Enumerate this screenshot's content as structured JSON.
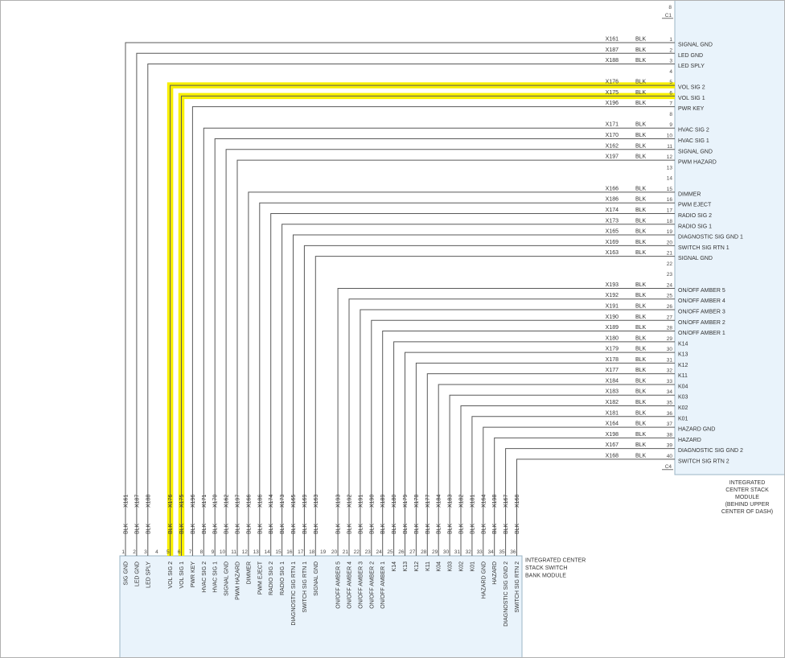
{
  "connectors": {
    "top_pin_ref": "8",
    "top": "C1",
    "bottom": "C4"
  },
  "right_module": {
    "title_lines": [
      "INTEGRATED",
      "CENTER STACK",
      "MODULE",
      "(BEHIND UPPER",
      "CENTER OF DASH)"
    ],
    "pins": [
      {
        "num": 1,
        "label": "SIGNAL GND"
      },
      {
        "num": 2,
        "label": "LED GND"
      },
      {
        "num": 3,
        "label": "LED SPLY"
      },
      {
        "num": 4,
        "label": ""
      },
      {
        "num": 5,
        "label": "VOL SIG 2"
      },
      {
        "num": 6,
        "label": "VOL SIG 1"
      },
      {
        "num": 7,
        "label": "PWR KEY"
      },
      {
        "num": 8,
        "label": ""
      },
      {
        "num": 9,
        "label": "HVAC SIG 2"
      },
      {
        "num": 10,
        "label": "HVAC SIG 1"
      },
      {
        "num": 11,
        "label": "SIGNAL GND"
      },
      {
        "num": 12,
        "label": "PWM HAZARD"
      },
      {
        "num": 13,
        "label": ""
      },
      {
        "num": 14,
        "label": ""
      },
      {
        "num": 15,
        "label": "DIMMER"
      },
      {
        "num": 16,
        "label": "PWM EJECT"
      },
      {
        "num": 17,
        "label": "RADIO SIG 2"
      },
      {
        "num": 18,
        "label": "RADIO SIG 1"
      },
      {
        "num": 19,
        "label": "DIAGNOSTIC SIG GND 1"
      },
      {
        "num": 20,
        "label": "SWITCH SIG RTN 1"
      },
      {
        "num": 21,
        "label": "SIGNAL GND"
      },
      {
        "num": 22,
        "label": ""
      },
      {
        "num": 23,
        "label": ""
      },
      {
        "num": 24,
        "label": "ON/OFF AMBER 5"
      },
      {
        "num": 25,
        "label": "ON/OFF AMBER 4"
      },
      {
        "num": 26,
        "label": "ON/OFF AMBER 3"
      },
      {
        "num": 27,
        "label": "ON/OFF AMBER 2"
      },
      {
        "num": 28,
        "label": "ON/OFF AMBER 1"
      },
      {
        "num": 29,
        "label": "K14"
      },
      {
        "num": 30,
        "label": "K13"
      },
      {
        "num": 31,
        "label": "K12"
      },
      {
        "num": 32,
        "label": "K11"
      },
      {
        "num": 33,
        "label": "K04"
      },
      {
        "num": 34,
        "label": "K03"
      },
      {
        "num": 35,
        "label": "K02"
      },
      {
        "num": 36,
        "label": "K01"
      },
      {
        "num": 37,
        "label": "HAZARD GND"
      },
      {
        "num": 38,
        "label": "HAZARD"
      },
      {
        "num": 39,
        "label": "DIAGNOSTIC SIG GND 2"
      },
      {
        "num": 40,
        "label": "SWITCH SIG RTN 2"
      }
    ]
  },
  "bottom_module": {
    "title_lines": [
      "INTEGRATED CENTER",
      "STACK SWITCH",
      "BANK MODULE"
    ],
    "pins": [
      {
        "num": 1,
        "label": "SIG GND"
      },
      {
        "num": 2,
        "label": "LED GND"
      },
      {
        "num": 3,
        "label": "LED SPLY"
      },
      {
        "num": 4,
        "label": ""
      },
      {
        "num": 5,
        "label": "VOL SIG 2"
      },
      {
        "num": 6,
        "label": "VOL SIG 1"
      },
      {
        "num": 7,
        "label": "PWR KEY"
      },
      {
        "num": 8,
        "label": "HVAC SIG 2"
      },
      {
        "num": 9,
        "label": "HVAC SIG 1"
      },
      {
        "num": 10,
        "label": "SIGNAL GND"
      },
      {
        "num": 11,
        "label": "PWM HAZARD"
      },
      {
        "num": 12,
        "label": "DIMMER"
      },
      {
        "num": 13,
        "label": "PWM EJECT"
      },
      {
        "num": 14,
        "label": "RADIO SIG 2"
      },
      {
        "num": 15,
        "label": "RADIO SIG 1"
      },
      {
        "num": 16,
        "label": "DIAGNOSTIC SIG RTN 1"
      },
      {
        "num": 17,
        "label": "SWITCH SIG RTN 1"
      },
      {
        "num": 18,
        "label": "SIGNAL GND"
      },
      {
        "num": 19,
        "label": ""
      },
      {
        "num": 20,
        "label": "ON/OFF AMBER 5"
      },
      {
        "num": 21,
        "label": "ON/OFF AMBER 4"
      },
      {
        "num": 22,
        "label": "ON/OFF AMBER 3"
      },
      {
        "num": 23,
        "label": "ON/OFF AMBER 2"
      },
      {
        "num": 24,
        "label": "ON/OFF AMBER 1"
      },
      {
        "num": 25,
        "label": "K14"
      },
      {
        "num": 26,
        "label": "K13"
      },
      {
        "num": 27,
        "label": "K12"
      },
      {
        "num": 28,
        "label": "K11"
      },
      {
        "num": 29,
        "label": "K04"
      },
      {
        "num": 30,
        "label": "K03"
      },
      {
        "num": 31,
        "label": "K02"
      },
      {
        "num": 32,
        "label": "K01"
      },
      {
        "num": 33,
        "label": "HAZARD GND"
      },
      {
        "num": 34,
        "label": "HAZARD"
      },
      {
        "num": 35,
        "label": "DIAGNOSTIC SIG GND 2"
      },
      {
        "num": 36,
        "label": "SWITCH SIG RTN 2"
      }
    ]
  },
  "wires": [
    {
      "id": "X161",
      "color": "BLK",
      "bottom_pin": 1,
      "right_pin": 1,
      "highlight": false
    },
    {
      "id": "X187",
      "color": "BLK",
      "bottom_pin": 2,
      "right_pin": 2,
      "highlight": false
    },
    {
      "id": "X188",
      "color": "BLK",
      "bottom_pin": 3,
      "right_pin": 3,
      "highlight": false
    },
    {
      "id": "X176",
      "color": "BLK",
      "bottom_pin": 5,
      "right_pin": 5,
      "highlight": true
    },
    {
      "id": "X175",
      "color": "BLK",
      "bottom_pin": 6,
      "right_pin": 6,
      "highlight": true
    },
    {
      "id": "X196",
      "color": "BLK",
      "bottom_pin": 7,
      "right_pin": 7,
      "highlight": false
    },
    {
      "id": "X171",
      "color": "BLK",
      "bottom_pin": 8,
      "right_pin": 9,
      "highlight": false
    },
    {
      "id": "X170",
      "color": "BLK",
      "bottom_pin": 9,
      "right_pin": 10,
      "highlight": false
    },
    {
      "id": "X162",
      "color": "BLK",
      "bottom_pin": 10,
      "right_pin": 11,
      "highlight": false
    },
    {
      "id": "X197",
      "color": "BLK",
      "bottom_pin": 11,
      "right_pin": 12,
      "highlight": false
    },
    {
      "id": "X166",
      "color": "BLK",
      "bottom_pin": 12,
      "right_pin": 15,
      "highlight": false
    },
    {
      "id": "X186",
      "color": "BLK",
      "bottom_pin": 13,
      "right_pin": 16,
      "highlight": false
    },
    {
      "id": "X174",
      "color": "BLK",
      "bottom_pin": 14,
      "right_pin": 17,
      "highlight": false
    },
    {
      "id": "X173",
      "color": "BLK",
      "bottom_pin": 15,
      "right_pin": 18,
      "highlight": false
    },
    {
      "id": "X165",
      "color": "BLK",
      "bottom_pin": 16,
      "right_pin": 19,
      "highlight": false
    },
    {
      "id": "X169",
      "color": "BLK",
      "bottom_pin": 17,
      "right_pin": 20,
      "highlight": false
    },
    {
      "id": "X163",
      "color": "BLK",
      "bottom_pin": 18,
      "right_pin": 21,
      "highlight": false
    },
    {
      "id": "X193",
      "color": "BLK",
      "bottom_pin": 20,
      "right_pin": 24,
      "highlight": false
    },
    {
      "id": "X192",
      "color": "BLK",
      "bottom_pin": 21,
      "right_pin": 25,
      "highlight": false
    },
    {
      "id": "X191",
      "color": "BLK",
      "bottom_pin": 22,
      "right_pin": 26,
      "highlight": false
    },
    {
      "id": "X190",
      "color": "BLK",
      "bottom_pin": 23,
      "right_pin": 27,
      "highlight": false
    },
    {
      "id": "X189",
      "color": "BLK",
      "bottom_pin": 24,
      "right_pin": 28,
      "highlight": false
    },
    {
      "id": "X180",
      "color": "BLK",
      "bottom_pin": 25,
      "right_pin": 29,
      "highlight": false
    },
    {
      "id": "X179",
      "color": "BLK",
      "bottom_pin": 26,
      "right_pin": 30,
      "highlight": false
    },
    {
      "id": "X178",
      "color": "BLK",
      "bottom_pin": 27,
      "right_pin": 31,
      "highlight": false
    },
    {
      "id": "X177",
      "color": "BLK",
      "bottom_pin": 28,
      "right_pin": 32,
      "highlight": false
    },
    {
      "id": "X184",
      "color": "BLK",
      "bottom_pin": 29,
      "right_pin": 33,
      "highlight": false
    },
    {
      "id": "X183",
      "color": "BLK",
      "bottom_pin": 30,
      "right_pin": 34,
      "highlight": false
    },
    {
      "id": "X182",
      "color": "BLK",
      "bottom_pin": 31,
      "right_pin": 35,
      "highlight": false
    },
    {
      "id": "X181",
      "color": "BLK",
      "bottom_pin": 32,
      "right_pin": 36,
      "highlight": false
    },
    {
      "id": "X164",
      "color": "BLK",
      "bottom_pin": 33,
      "right_pin": 37,
      "highlight": false
    },
    {
      "id": "X198",
      "color": "BLK",
      "bottom_pin": 34,
      "right_pin": 38,
      "highlight": false
    },
    {
      "id": "X167",
      "color": "BLK",
      "bottom_pin": 35,
      "right_pin": 39,
      "highlight": false
    },
    {
      "id": "X168",
      "color": "BLK",
      "bottom_pin": 36,
      "right_pin": 40,
      "highlight": false
    }
  ],
  "colors": {
    "module_fill": "#e9f3fb",
    "module_border": "#9bb6c6",
    "wire": "#595959",
    "highlight": "#f8ef00",
    "text": "#333333",
    "background": "#ffffff"
  }
}
